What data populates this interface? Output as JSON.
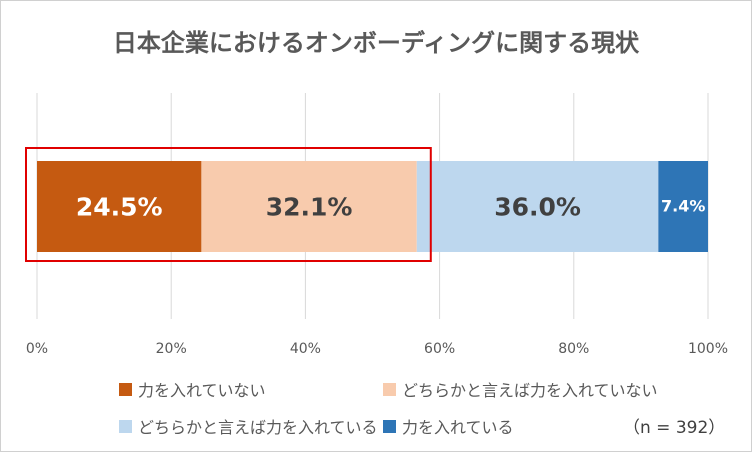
{
  "chart_data": {
    "type": "bar",
    "orientation": "horizontal-stacked-100",
    "title": "日本企業におけるオンボーディングに関する現状",
    "categories": [
      ""
    ],
    "series": [
      {
        "name": "力を入れていない",
        "values": [
          24.5
        ],
        "label": "24.5%",
        "color": "#c55a11",
        "label_color": "#ffffff"
      },
      {
        "name": "どちらかと言えば力を入れていない",
        "values": [
          32.1
        ],
        "label": "32.1%",
        "color": "#f8cbad",
        "label_color": "#404040"
      },
      {
        "name": "どちらかと言えば力を入れている",
        "values": [
          36.0
        ],
        "label": "36.0%",
        "color": "#bdd7ee",
        "label_color": "#404040"
      },
      {
        "name": "力を入れている",
        "values": [
          7.4
        ],
        "label": "7.4%",
        "color": "#2e75b6",
        "label_color": "#ffffff"
      }
    ],
    "x_ticks": [
      "0%",
      "20%",
      "40%",
      "60%",
      "80%",
      "100%"
    ],
    "xlim": [
      0,
      100
    ],
    "grid": true,
    "legend_position": "bottom",
    "highlight_color": "#e00000",
    "highlight_series": [
      "力を入れていない",
      "どちらかと言えば力を入れていない"
    ],
    "note": "（n = 392）"
  }
}
